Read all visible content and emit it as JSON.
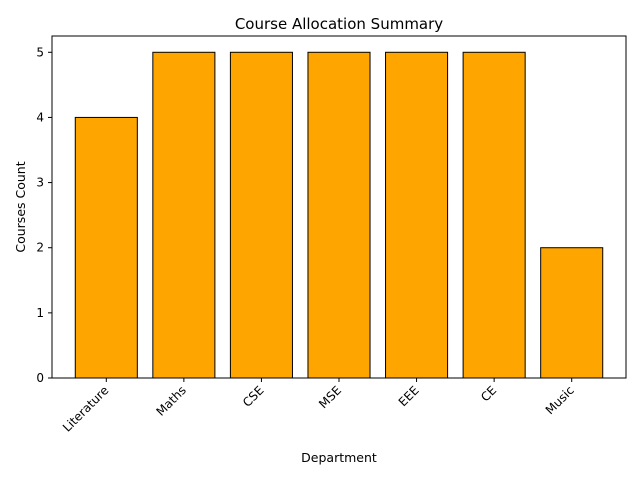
{
  "chart_data": {
    "type": "bar",
    "title": "Course Allocation Summary",
    "xlabel": "Department",
    "ylabel": "Courses Count",
    "categories": [
      "Literature",
      "Maths",
      "CSE",
      "MSE",
      "EEE",
      "CE",
      "Music"
    ],
    "values": [
      4,
      5,
      5,
      5,
      5,
      5,
      2
    ],
    "ylim": [
      0,
      5.25
    ],
    "yticks": [
      0,
      1,
      2,
      3,
      4,
      5
    ],
    "grid": false,
    "bar_color": "#FFA500",
    "edge_color": "#000000"
  }
}
